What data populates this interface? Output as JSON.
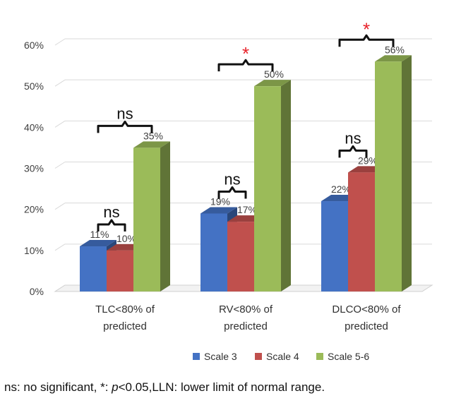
{
  "chart_data": {
    "type": "bar",
    "categories": [
      [
        "TLC<80% of",
        "predicted"
      ],
      [
        "RV<80% of",
        "predicted"
      ],
      [
        "DLCO<80% of",
        "predicted"
      ]
    ],
    "series": [
      {
        "name": "Scale 3",
        "values": [
          11,
          19,
          22
        ],
        "labels": [
          "11%",
          "19%",
          "22%"
        ],
        "color": "#4472c4"
      },
      {
        "name": "Scale 4",
        "values": [
          10,
          17,
          29
        ],
        "labels": [
          "10%",
          "17%",
          "29%"
        ],
        "color": "#c0504d"
      },
      {
        "name": "Scale 5-6",
        "values": [
          35,
          50,
          56
        ],
        "labels": [
          "35%",
          "50%",
          "56%"
        ],
        "color": "#9bbb59"
      }
    ],
    "ylim": [
      0,
      60
    ],
    "yticks": [
      "0%",
      "10%",
      "20%",
      "30%",
      "40%",
      "50%",
      "60%"
    ],
    "grid": true,
    "legend": "bottom",
    "annotations": [
      {
        "text": "ns",
        "category": 0,
        "series": [
          0,
          1
        ],
        "kind": "ns"
      },
      {
        "text": "ns",
        "category": 0,
        "series": [
          0,
          2
        ],
        "kind": "ns"
      },
      {
        "text": "ns",
        "category": 1,
        "series": [
          0,
          1
        ],
        "kind": "ns"
      },
      {
        "text": "*",
        "category": 1,
        "series": [
          0,
          2
        ],
        "kind": "star"
      },
      {
        "text": "ns",
        "category": 2,
        "series": [
          0,
          1
        ],
        "kind": "ns"
      },
      {
        "text": "*",
        "category": 2,
        "series": [
          0,
          2
        ],
        "kind": "star"
      }
    ]
  },
  "footnote": {
    "prefix": "ns: no significant, *: ",
    "italic": "p",
    "suffix": "<0.05,LLN: lower limit of normal range."
  },
  "colors": {
    "star": "#e8222a",
    "grid": "#d9d9d9"
  }
}
